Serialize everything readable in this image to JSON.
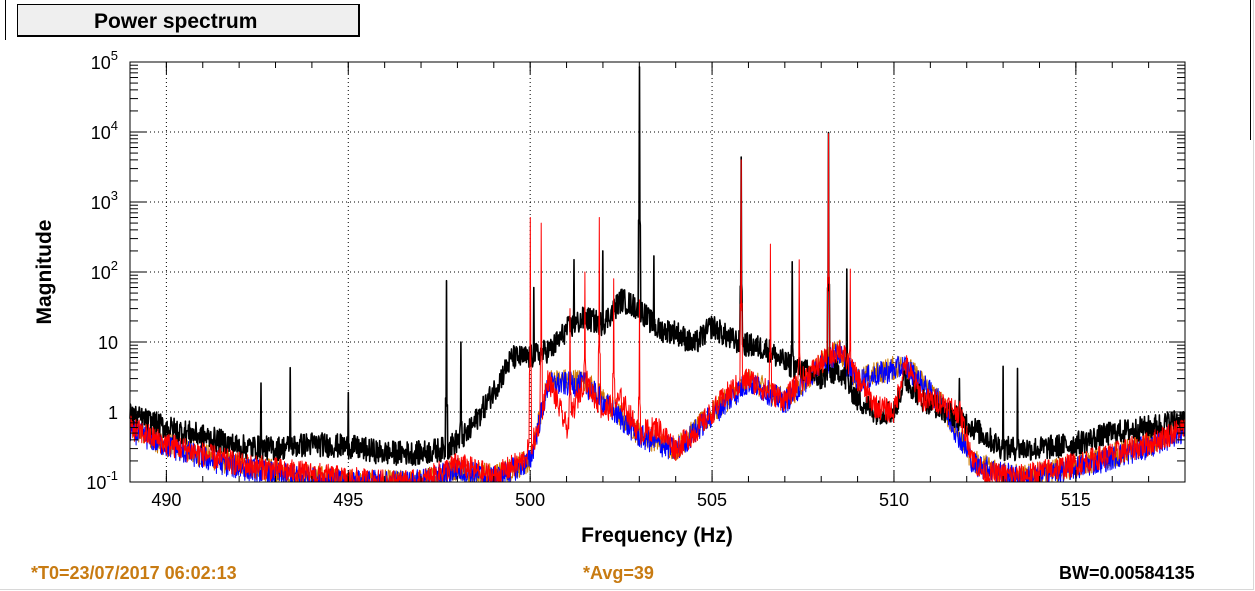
{
  "window": {
    "title": "Power spectrum"
  },
  "footer": {
    "t0": "*T0=23/07/2017 06:02:13",
    "avg": "*Avg=39",
    "bw": "BW=0.00584135"
  },
  "colors": {
    "footer_accent": "#c87b12",
    "trace_black": "#000000",
    "trace_red": "#ff0000",
    "trace_blue": "#0000ff",
    "trace_orange": "#cc7a00",
    "grid": "#000000",
    "background": "#ffffff"
  },
  "chart_data": {
    "type": "line",
    "title": "Power spectrum",
    "xlabel": "Frequency (Hz)",
    "ylabel": "Magnitude",
    "xlim": [
      489,
      518
    ],
    "ylim": [
      0.1,
      100000
    ],
    "yscale": "log",
    "grid": true,
    "x_ticks": [
      490,
      495,
      500,
      505,
      510,
      515
    ],
    "x_tick_labels": [
      "490",
      "495",
      "500",
      "505",
      "510",
      "515"
    ],
    "y_ticks": [
      0.1,
      1,
      10,
      100,
      1000,
      10000,
      100000
    ],
    "y_tick_labels": [
      {
        "base": "10",
        "exp": "-1"
      },
      {
        "base": "1",
        "exp": ""
      },
      {
        "base": "10",
        "exp": ""
      },
      {
        "base": "10",
        "exp": "2"
      },
      {
        "base": "10",
        "exp": "3"
      },
      {
        "base": "10",
        "exp": "4"
      },
      {
        "base": "10",
        "exp": "5"
      }
    ],
    "series": [
      {
        "color": "#000000",
        "baseline": [
          [
            489.0,
            0.9
          ],
          [
            490.0,
            0.6
          ],
          [
            491.0,
            0.45
          ],
          [
            492.0,
            0.32
          ],
          [
            493.0,
            0.3
          ],
          [
            494.0,
            0.35
          ],
          [
            495.0,
            0.32
          ],
          [
            496.0,
            0.26
          ],
          [
            497.0,
            0.26
          ],
          [
            497.7,
            0.3
          ],
          [
            498.3,
            0.5
          ],
          [
            499.0,
            2.0
          ],
          [
            499.5,
            6.0
          ],
          [
            500.0,
            6.0
          ],
          [
            500.6,
            8.0
          ],
          [
            501.0,
            15.0
          ],
          [
            501.5,
            22.0
          ],
          [
            502.0,
            18.0
          ],
          [
            502.5,
            40.0
          ],
          [
            503.0,
            30.0
          ],
          [
            503.5,
            15.0
          ],
          [
            504.0,
            14.0
          ],
          [
            504.5,
            9.0
          ],
          [
            505.0,
            17.0
          ],
          [
            505.5,
            11.0
          ],
          [
            506.0,
            9.0
          ],
          [
            506.5,
            8.0
          ],
          [
            507.0,
            5.0
          ],
          [
            507.5,
            4.0
          ],
          [
            508.0,
            3.0
          ],
          [
            508.5,
            4.0
          ],
          [
            509.0,
            1.5
          ],
          [
            509.5,
            1.0
          ],
          [
            510.0,
            1.0
          ],
          [
            510.3,
            3.0
          ],
          [
            510.8,
            1.5
          ],
          [
            511.5,
            1.0
          ],
          [
            512.0,
            0.7
          ],
          [
            512.5,
            0.45
          ],
          [
            513.0,
            0.3
          ],
          [
            514.0,
            0.3
          ],
          [
            515.0,
            0.35
          ],
          [
            516.0,
            0.5
          ],
          [
            517.0,
            0.6
          ],
          [
            518.0,
            0.8
          ]
        ],
        "peaks": [
          [
            492.6,
            2.6
          ],
          [
            493.4,
            4.3
          ],
          [
            495.0,
            1.9
          ],
          [
            497.7,
            75.0
          ],
          [
            498.1,
            10.0
          ],
          [
            499.3,
            4.0
          ],
          [
            500.1,
            60.0
          ],
          [
            501.2,
            150.0
          ],
          [
            502.0,
            200.0
          ],
          [
            503.0,
            85000.0
          ],
          [
            503.4,
            170.0
          ],
          [
            505.8,
            4400.0
          ],
          [
            507.2,
            140.0
          ],
          [
            508.2,
            9800.0
          ],
          [
            508.7,
            110.0
          ],
          [
            511.8,
            3.0
          ],
          [
            513.0,
            4.5
          ],
          [
            513.4,
            4.2
          ]
        ]
      },
      {
        "color": "#ff0000",
        "baseline": [
          [
            489.0,
            0.6
          ],
          [
            490.0,
            0.35
          ],
          [
            491.0,
            0.25
          ],
          [
            492.0,
            0.18
          ],
          [
            493.0,
            0.15
          ],
          [
            494.0,
            0.13
          ],
          [
            495.0,
            0.11
          ],
          [
            496.0,
            0.1
          ],
          [
            497.0,
            0.1
          ],
          [
            498.0,
            0.18
          ],
          [
            499.0,
            0.12
          ],
          [
            499.8,
            0.2
          ],
          [
            500.2,
            0.5
          ],
          [
            500.5,
            3.0
          ],
          [
            501.0,
            0.6
          ],
          [
            501.5,
            3.0
          ],
          [
            502.0,
            1.0
          ],
          [
            502.5,
            1.5
          ],
          [
            503.0,
            0.5
          ],
          [
            503.5,
            0.6
          ],
          [
            504.0,
            0.3
          ],
          [
            504.5,
            0.5
          ],
          [
            505.0,
            1.0
          ],
          [
            505.5,
            2.0
          ],
          [
            506.0,
            3.0
          ],
          [
            506.5,
            2.0
          ],
          [
            507.0,
            1.5
          ],
          [
            507.5,
            3.0
          ],
          [
            508.0,
            5.0
          ],
          [
            508.5,
            8.0
          ],
          [
            509.0,
            3.0
          ],
          [
            509.5,
            1.2
          ],
          [
            510.0,
            1.0
          ],
          [
            510.3,
            5.0
          ],
          [
            510.8,
            1.5
          ],
          [
            511.3,
            1.4
          ],
          [
            511.8,
            1.0
          ],
          [
            512.2,
            0.2
          ],
          [
            512.5,
            0.13
          ],
          [
            513.5,
            0.12
          ],
          [
            515.0,
            0.18
          ],
          [
            516.0,
            0.25
          ],
          [
            517.0,
            0.35
          ],
          [
            518.0,
            0.6
          ]
        ],
        "peaks": [
          [
            500.0,
            600.0
          ],
          [
            500.3,
            500.0
          ],
          [
            501.1,
            30.0
          ],
          [
            501.5,
            100.0
          ],
          [
            501.9,
            600.0
          ],
          [
            502.3,
            80.0
          ],
          [
            503.0,
            40.0
          ],
          [
            505.8,
            4000.0
          ],
          [
            506.6,
            250.0
          ],
          [
            507.4,
            150.0
          ],
          [
            508.2,
            9500.0
          ],
          [
            508.8,
            110.0
          ]
        ]
      },
      {
        "color": "#0000ff",
        "baseline": [
          [
            489.0,
            0.55
          ],
          [
            490.0,
            0.33
          ],
          [
            491.0,
            0.22
          ],
          [
            492.0,
            0.16
          ],
          [
            493.0,
            0.13
          ],
          [
            494.0,
            0.11
          ],
          [
            495.0,
            0.1
          ],
          [
            497.0,
            0.1
          ],
          [
            498.0,
            0.15
          ],
          [
            499.0,
            0.11
          ],
          [
            500.0,
            0.2
          ],
          [
            500.5,
            2.5
          ],
          [
            501.5,
            2.5
          ],
          [
            503.0,
            0.45
          ],
          [
            504.0,
            0.28
          ],
          [
            505.0,
            0.9
          ],
          [
            506.0,
            2.7
          ],
          [
            507.0,
            1.4
          ],
          [
            508.0,
            4.5
          ],
          [
            508.5,
            7.0
          ],
          [
            509.0,
            2.8
          ],
          [
            510.3,
            4.5
          ],
          [
            511.3,
            1.3
          ],
          [
            512.2,
            0.18
          ],
          [
            513.5,
            0.11
          ],
          [
            515.0,
            0.16
          ],
          [
            516.0,
            0.22
          ],
          [
            517.0,
            0.32
          ],
          [
            518.0,
            0.55
          ]
        ],
        "peaks": []
      },
      {
        "color": "#cc7a00",
        "baseline": [
          [
            489.0,
            0.58
          ],
          [
            490.0,
            0.34
          ],
          [
            491.0,
            0.24
          ],
          [
            492.0,
            0.17
          ],
          [
            493.0,
            0.14
          ],
          [
            494.0,
            0.12
          ],
          [
            495.0,
            0.1
          ],
          [
            497.0,
            0.1
          ],
          [
            498.0,
            0.16
          ],
          [
            499.0,
            0.12
          ],
          [
            500.0,
            0.2
          ],
          [
            500.5,
            2.8
          ],
          [
            501.5,
            2.8
          ],
          [
            503.0,
            0.48
          ],
          [
            504.0,
            0.3
          ],
          [
            505.0,
            0.95
          ],
          [
            506.0,
            2.9
          ],
          [
            507.0,
            1.45
          ],
          [
            508.0,
            4.8
          ],
          [
            508.5,
            7.5
          ],
          [
            509.0,
            2.9
          ],
          [
            510.3,
            4.8
          ],
          [
            511.3,
            1.35
          ],
          [
            512.2,
            0.19
          ],
          [
            513.5,
            0.115
          ],
          [
            515.0,
            0.17
          ],
          [
            516.0,
            0.24
          ],
          [
            517.0,
            0.34
          ],
          [
            518.0,
            0.58
          ]
        ],
        "peaks": []
      }
    ]
  }
}
